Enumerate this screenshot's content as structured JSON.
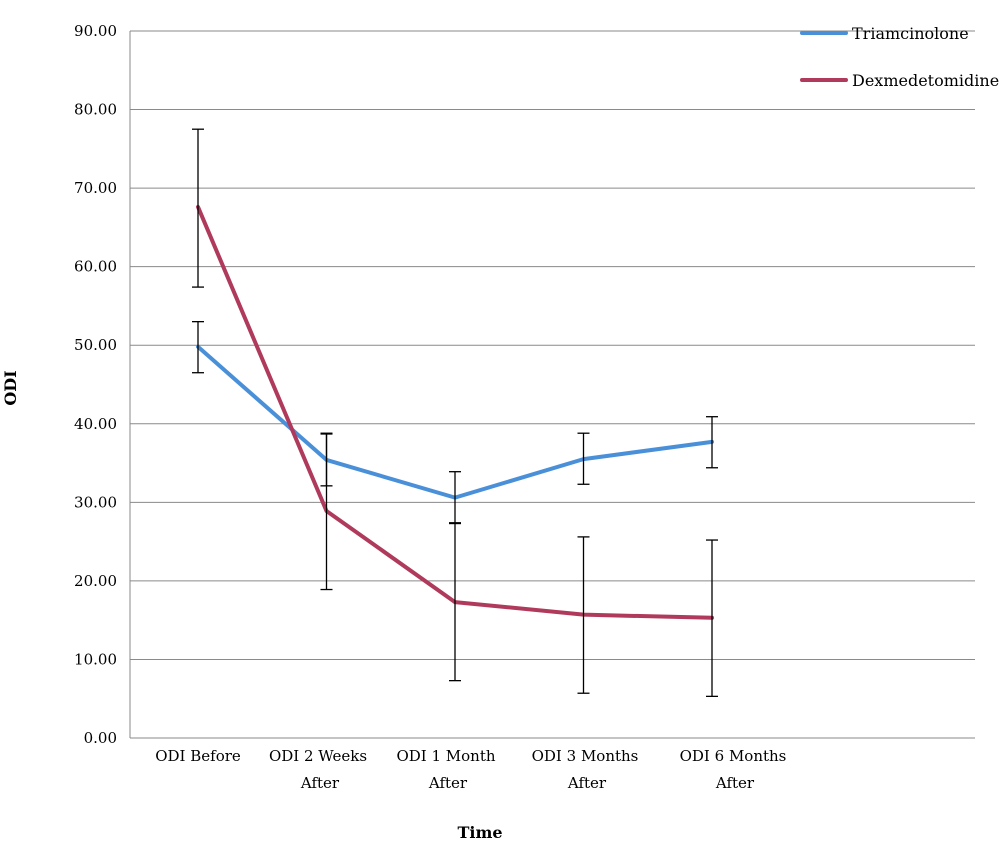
{
  "chart_data": {
    "type": "line",
    "title": "",
    "xlabel": "Time",
    "ylabel": "ODI",
    "ylim": [
      0,
      90
    ],
    "yticks": [
      "0.00",
      "10.00",
      "20.00",
      "30.00",
      "40.00",
      "50.00",
      "60.00",
      "70.00",
      "80.00",
      "90.00"
    ],
    "categories": [
      [
        "ODI Before"
      ],
      [
        "ODI 2 Weeks",
        "After"
      ],
      [
        "ODI 1 Month",
        "After"
      ],
      [
        "ODI  3 Months",
        "After"
      ],
      [
        "ODI 6 Months",
        "After"
      ]
    ],
    "grid": "horizontal",
    "legend_position": "top-right",
    "series": [
      {
        "name": "Triamcinolone",
        "color": "#4a90d9",
        "values": [
          49.8,
          35.4,
          30.6,
          35.5,
          37.7
        ],
        "error_low": [
          46.5,
          32.1,
          27.4,
          32.3,
          34.4
        ],
        "error_high": [
          53.0,
          38.7,
          33.9,
          38.8,
          40.9
        ]
      },
      {
        "name": "Dexmedetomidine",
        "color": "#b03a5c",
        "values": [
          67.6,
          28.9,
          17.3,
          15.7,
          15.3
        ],
        "error_low": [
          57.4,
          18.9,
          7.3,
          5.7,
          5.3
        ],
        "error_high": [
          77.5,
          38.8,
          27.3,
          25.6,
          25.2
        ]
      }
    ]
  }
}
